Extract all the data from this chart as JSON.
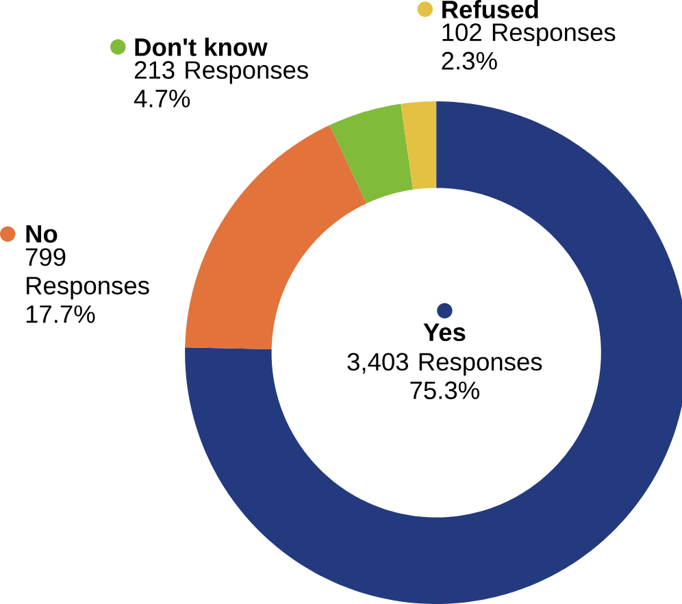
{
  "chart_data": {
    "type": "donut",
    "categories": [
      "Yes",
      "No",
      "Don't know",
      "Refused"
    ],
    "values": [
      3403,
      799,
      213,
      102
    ],
    "legend": "top left",
    "colors": [
      "#243a7e",
      "#e2733a",
      "#80bb3a",
      "#e4c143"
    ],
    "value_labels": [
      "3,403 Responses 75.3%",
      "799 Responses 17.7%",
      "213 Responses 4.7%",
      "102 Responses 2.3%"
    ]
  }
}
